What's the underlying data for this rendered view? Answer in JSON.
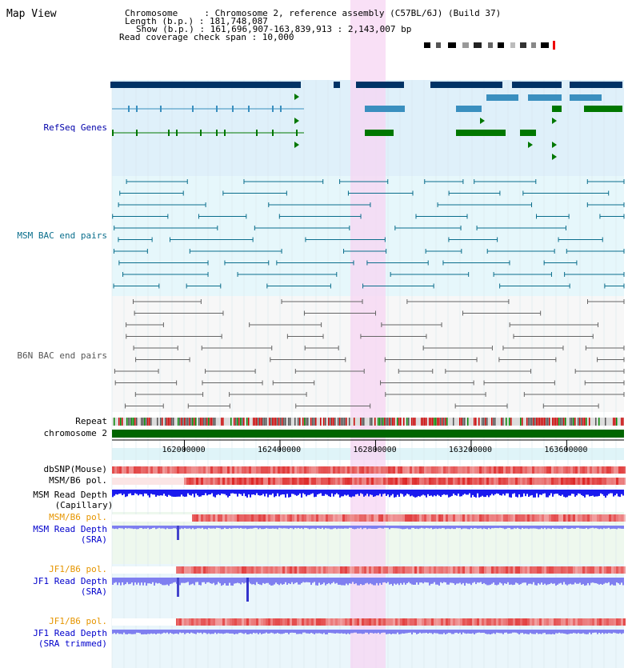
{
  "page": {
    "title": "Map View"
  },
  "info": {
    "chromosome": "Chromosome     : Chromosome 2, reference assembly (C57BL/6J) (Build 37)",
    "length": "Length (b.p.) : 181,748,087",
    "show": "Show (b.p.) : 161,696,907-163,839,913 : 2,143,007 bp",
    "coverage": "Read coverage check span : 10,000"
  },
  "tracks": {
    "refseq": {
      "label": "RefSeq Genes",
      "color": "#0000aa"
    },
    "msm_bac": {
      "label": "MSM BAC end pairs",
      "color": "#0a6e8c"
    },
    "b6n_bac": {
      "label": "B6N BAC end pairs",
      "color": "#555555"
    },
    "repeat": {
      "label": "Repeat"
    },
    "chrom": {
      "label": "chromosome 2"
    },
    "dbsnp": {
      "label": "dbSNP(Mouse)"
    },
    "msm_pol1": {
      "label": "MSM/B6 pol."
    },
    "msm_depth_cap": {
      "label1": "MSM Read Depth",
      "label2": "(Capillary)"
    },
    "msm_pol2": {
      "label": "MSM/B6 pol.",
      "color": "#e69500"
    },
    "msm_depth_sra": {
      "label1": "MSM Read Depth",
      "label2": "(SRA)",
      "color": "#0000cc"
    },
    "jf1_pol1": {
      "label": "JF1/B6 pol.",
      "color": "#e69500"
    },
    "jf1_depth_sra": {
      "label1": "JF1 Read Depth",
      "label2": "(SRA)",
      "color": "#0000cc"
    },
    "jf1_pol2": {
      "label": "JF1/B6 pol.",
      "color": "#e69500"
    },
    "jf1_depth_trim": {
      "label1": "JF1 Read Depth",
      "label2": "(SRA trimmed)",
      "color": "#0000cc"
    }
  },
  "ruler": {
    "ticks": [
      {
        "label": "162000000",
        "value": 162000000
      },
      {
        "label": "162400000",
        "value": 162400000
      },
      {
        "label": "162800000",
        "value": 162800000
      },
      {
        "label": "163200000",
        "value": 163200000
      },
      {
        "label": "163600000",
        "value": 163600000
      }
    ]
  },
  "colors": {
    "refseq_bg": "#dff0fa",
    "bac_bg": "#e6f7fb",
    "b6n_bg": "#f7f7f7",
    "highlight": "#f7d6f3",
    "gene_dark": "#003366",
    "gene_teal": "#3a8fbf",
    "gene_green": "#007700",
    "snp_red": "#ee3333",
    "depth_blue": "#1a1aee",
    "depth_light": "#7f7ff0"
  }
}
